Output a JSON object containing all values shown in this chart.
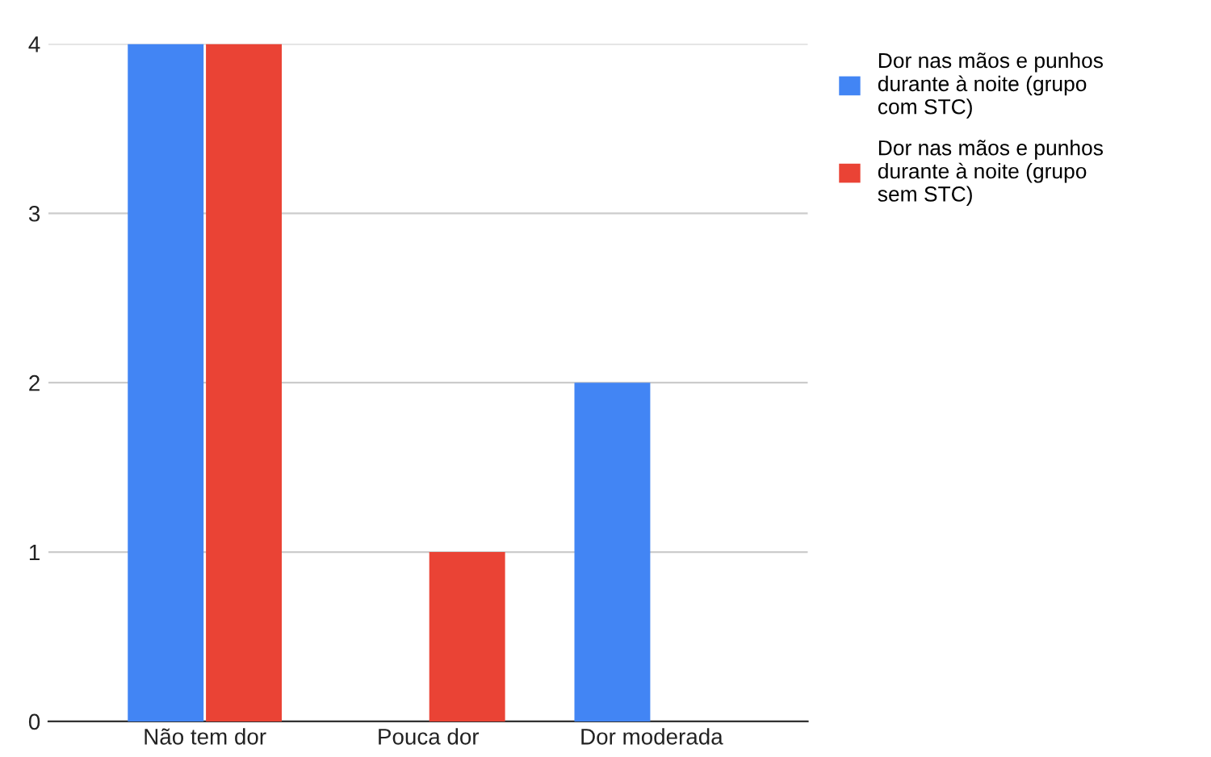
{
  "chart_data": {
    "type": "bar",
    "categories": [
      "Não tem dor",
      "Pouca dor",
      "Dor moderada"
    ],
    "series": [
      {
        "name": "Dor nas mãos e punhos durante à noite (grupo com STC)",
        "color": "#4285f4",
        "values": [
          4,
          0,
          2
        ]
      },
      {
        "name": "Dor nas mãos e punhos durante à noite (grupo sem STC)",
        "color": "#ea4335",
        "values": [
          4,
          1,
          0
        ]
      }
    ],
    "ylim": [
      0,
      4
    ],
    "yticks": [
      0,
      1,
      2,
      3,
      4
    ],
    "grid": "y",
    "legend": "right"
  }
}
